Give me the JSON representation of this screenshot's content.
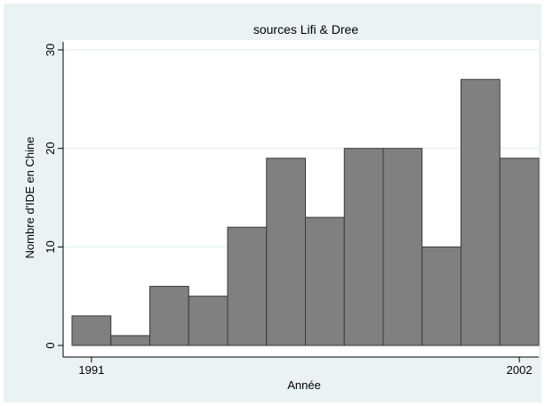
{
  "chart_data": {
    "type": "bar",
    "title": "sources Lifi & Dree",
    "xlabel": "Année",
    "ylabel": "Nombre d'IDE en Chine",
    "x": [
      1991,
      1992,
      1993,
      1994,
      1995,
      1996,
      1997,
      1998,
      1999,
      2000,
      2001,
      2002
    ],
    "values": [
      3,
      1,
      6,
      5,
      12,
      19,
      13,
      20,
      20,
      10,
      27,
      19
    ],
    "xticks": [
      1991,
      2002
    ],
    "xtick_labels": [
      "1991",
      "2002"
    ],
    "yticks": [
      0,
      10,
      20,
      30
    ],
    "ytick_labels": [
      "0",
      "10",
      "20",
      "30"
    ],
    "ylim": [
      0,
      30
    ],
    "xlim": [
      1990.5,
      2002.5
    ],
    "grid": "horizontal",
    "colors": {
      "background": "#ffffff",
      "outer_region": "#eaf2f3",
      "plot_region": "#ffffff",
      "bar_fill": "#808080",
      "bar_edge": "#3a3a3a",
      "grid": "#eaf2f3",
      "axis": "#000000"
    }
  }
}
